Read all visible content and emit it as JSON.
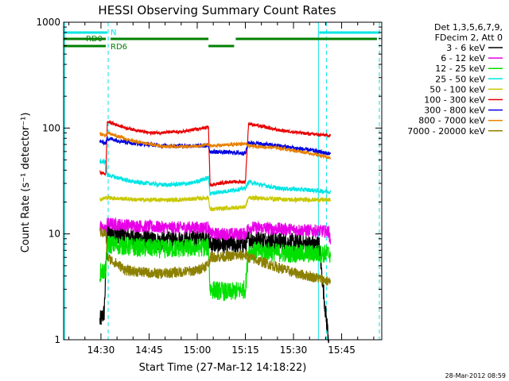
{
  "chart_data": {
    "type": "line",
    "title": "HESSI Observing Summary Count Rates",
    "xlabel": "Start Time (27-Mar-12 14:18:22)",
    "ylabel": "Count Rate (s⁻¹ detector⁻¹)",
    "yscale": "log",
    "ylim": [
      1,
      1000
    ],
    "xlim": [
      "14:18:22",
      "15:57:30"
    ],
    "x_ticks": [
      "14:30",
      "14:45",
      "15:00",
      "15:15",
      "15:30",
      "15:45"
    ],
    "y_ticks": [
      "1",
      "10",
      "100",
      "1000"
    ],
    "legend": {
      "header_line1": "Det 1,3,5,6,7,9,",
      "header_line2": "FDecim 2, Att 0",
      "placement": "outside-right"
    },
    "footer_date": "28-Mar-2012 08:59",
    "flags": [
      {
        "label": "N",
        "color": "#00e5e5",
        "segments": [
          [
            "14:18:22",
            "14:32:00"
          ],
          [
            "15:38:00",
            "15:57:00"
          ]
        ]
      },
      {
        "label": "RD0",
        "color": "#008000",
        "segments": [
          [
            "14:18:22",
            "14:31:30"
          ]
        ]
      },
      {
        "label": "RD6",
        "color": "#008000",
        "segments": [
          [
            "14:33:00",
            "15:03:30"
          ],
          [
            "15:03:30",
            "15:11:30"
          ],
          [
            "15:12:00",
            "15:56:00"
          ]
        ]
      }
    ],
    "vlines": [
      {
        "time": "14:18:40",
        "style": "solid",
        "color": "#00e5e5"
      },
      {
        "time": "14:32:15",
        "style": "dashed",
        "color": "#00e5e5"
      },
      {
        "time": "15:37:45",
        "style": "solid",
        "color": "#00e5e5"
      },
      {
        "time": "15:40:15",
        "style": "dashed",
        "color": "#00e5e5"
      },
      {
        "time": "15:56:45",
        "style": "dashed",
        "color": "#00e5e5"
      }
    ],
    "series": [
      {
        "name": "3 - 6 keV",
        "color": "#000000",
        "noise": 0.09,
        "points": [
          [
            "14:29:40",
            1.5
          ],
          [
            "14:31:00",
            1.8
          ],
          [
            "14:32:00",
            10.5
          ],
          [
            "14:38:00",
            9.5
          ],
          [
            "14:48:00",
            8.5
          ],
          [
            "15:00:00",
            9.0
          ],
          [
            "15:03:30",
            9.5
          ],
          [
            "15:04:00",
            8.0
          ],
          [
            "15:15:00",
            8.0
          ],
          [
            "15:16:00",
            9.0
          ],
          [
            "15:25:00",
            8.5
          ],
          [
            "15:35:00",
            8.0
          ],
          [
            "15:38:00",
            7.8
          ],
          [
            "15:40:00",
            1.8
          ],
          [
            "15:41:00",
            1.0
          ]
        ]
      },
      {
        "name": "6 - 12 keV",
        "color": "#e800e8",
        "noise": 0.06,
        "points": [
          [
            "14:29:40",
            11.5
          ],
          [
            "14:31:30",
            11.0
          ],
          [
            "14:32:00",
            12.5
          ],
          [
            "14:40:00",
            12.0
          ],
          [
            "14:50:00",
            11.5
          ],
          [
            "15:03:30",
            11.5
          ],
          [
            "15:04:00",
            10.0
          ],
          [
            "15:15:00",
            10.0
          ],
          [
            "15:16:00",
            11.5
          ],
          [
            "15:30:00",
            11.0
          ],
          [
            "15:41:00",
            10.5
          ],
          [
            "15:41:30",
            8.0
          ]
        ]
      },
      {
        "name": "12 - 25 keV",
        "color": "#00e000",
        "noise": 0.09,
        "points": [
          [
            "14:29:40",
            4.3
          ],
          [
            "14:31:30",
            4.5
          ],
          [
            "14:32:00",
            8.0
          ],
          [
            "14:40:00",
            7.5
          ],
          [
            "14:50:00",
            7.2
          ],
          [
            "15:03:30",
            7.5
          ],
          [
            "15:04:00",
            3.0
          ],
          [
            "15:10:00",
            2.8
          ],
          [
            "15:15:00",
            3.0
          ],
          [
            "15:16:00",
            7.0
          ],
          [
            "15:30:00",
            6.5
          ],
          [
            "15:41:30",
            6.5
          ]
        ]
      },
      {
        "name": "25 - 50 keV",
        "color": "#00e5e5",
        "noise": 0.02,
        "points": [
          [
            "14:29:40",
            48
          ],
          [
            "14:31:30",
            48
          ],
          [
            "14:32:00",
            36
          ],
          [
            "14:40:00",
            31
          ],
          [
            "14:50:00",
            29
          ],
          [
            "14:58:00",
            30
          ],
          [
            "15:03:30",
            34
          ],
          [
            "15:04:00",
            24
          ],
          [
            "15:15:00",
            27
          ],
          [
            "15:16:00",
            31
          ],
          [
            "15:25:00",
            27
          ],
          [
            "15:35:00",
            26
          ],
          [
            "15:41:30",
            25
          ]
        ]
      },
      {
        "name": "50 - 100 keV",
        "color": "#c8c800",
        "noise": 0.02,
        "points": [
          [
            "14:29:40",
            21
          ],
          [
            "14:31:30",
            22
          ],
          [
            "14:32:00",
            22
          ],
          [
            "14:42:00",
            21
          ],
          [
            "14:55:00",
            21
          ],
          [
            "15:03:30",
            22
          ],
          [
            "15:04:00",
            17
          ],
          [
            "15:15:00",
            18
          ],
          [
            "15:16:00",
            22
          ],
          [
            "15:30:00",
            21
          ],
          [
            "15:41:30",
            21
          ]
        ]
      },
      {
        "name": "100 - 300 keV",
        "color": "#e80000",
        "noise": 0.015,
        "points": [
          [
            "14:29:40",
            38
          ],
          [
            "14:31:30",
            37
          ],
          [
            "14:32:00",
            115
          ],
          [
            "14:38:00",
            100
          ],
          [
            "14:45:00",
            90
          ],
          [
            "14:55:00",
            92
          ],
          [
            "15:03:30",
            102
          ],
          [
            "15:04:00",
            29
          ],
          [
            "15:10:00",
            31
          ],
          [
            "15:15:00",
            31
          ],
          [
            "15:16:00",
            110
          ],
          [
            "15:25:00",
            96
          ],
          [
            "15:35:00",
            88
          ],
          [
            "15:41:30",
            85
          ]
        ]
      },
      {
        "name": "300 - 800 keV",
        "color": "#0000e0",
        "noise": 0.02,
        "points": [
          [
            "14:29:40",
            75
          ],
          [
            "14:31:30",
            72
          ],
          [
            "14:32:00",
            80
          ],
          [
            "14:40:00",
            72
          ],
          [
            "14:50:00",
            68
          ],
          [
            "15:03:30",
            68
          ],
          [
            "15:04:00",
            60
          ],
          [
            "15:15:00",
            58
          ],
          [
            "15:16:00",
            73
          ],
          [
            "15:25:00",
            68
          ],
          [
            "15:35:00",
            62
          ],
          [
            "15:41:30",
            57
          ]
        ]
      },
      {
        "name": "800 - 7000 keV",
        "color": "#e88000",
        "noise": 0.015,
        "points": [
          [
            "14:29:40",
            88
          ],
          [
            "14:31:30",
            85
          ],
          [
            "14:32:00",
            90
          ],
          [
            "14:40:00",
            75
          ],
          [
            "14:50:00",
            67
          ],
          [
            "15:00:00",
            67
          ],
          [
            "15:03:30",
            70
          ],
          [
            "15:04:00",
            68
          ],
          [
            "15:15:00",
            71
          ],
          [
            "15:16:00",
            68
          ],
          [
            "15:25:00",
            65
          ],
          [
            "15:35:00",
            58
          ],
          [
            "15:41:30",
            52
          ]
        ]
      },
      {
        "name": "7000 - 20000 keV",
        "color": "#8c8000",
        "noise": 0.05,
        "points": [
          [
            "14:29:40",
            10.5
          ],
          [
            "14:31:30",
            10.0
          ],
          [
            "14:32:00",
            6.0
          ],
          [
            "14:38:00",
            4.5
          ],
          [
            "14:48:00",
            4.2
          ],
          [
            "15:00:00",
            4.5
          ],
          [
            "15:03:30",
            5.2
          ],
          [
            "15:04:00",
            6.0
          ],
          [
            "15:15:00",
            6.3
          ],
          [
            "15:16:00",
            6.0
          ],
          [
            "15:30:00",
            4.3
          ],
          [
            "15:38:00",
            3.8
          ],
          [
            "15:41:30",
            3.5
          ]
        ]
      }
    ]
  }
}
